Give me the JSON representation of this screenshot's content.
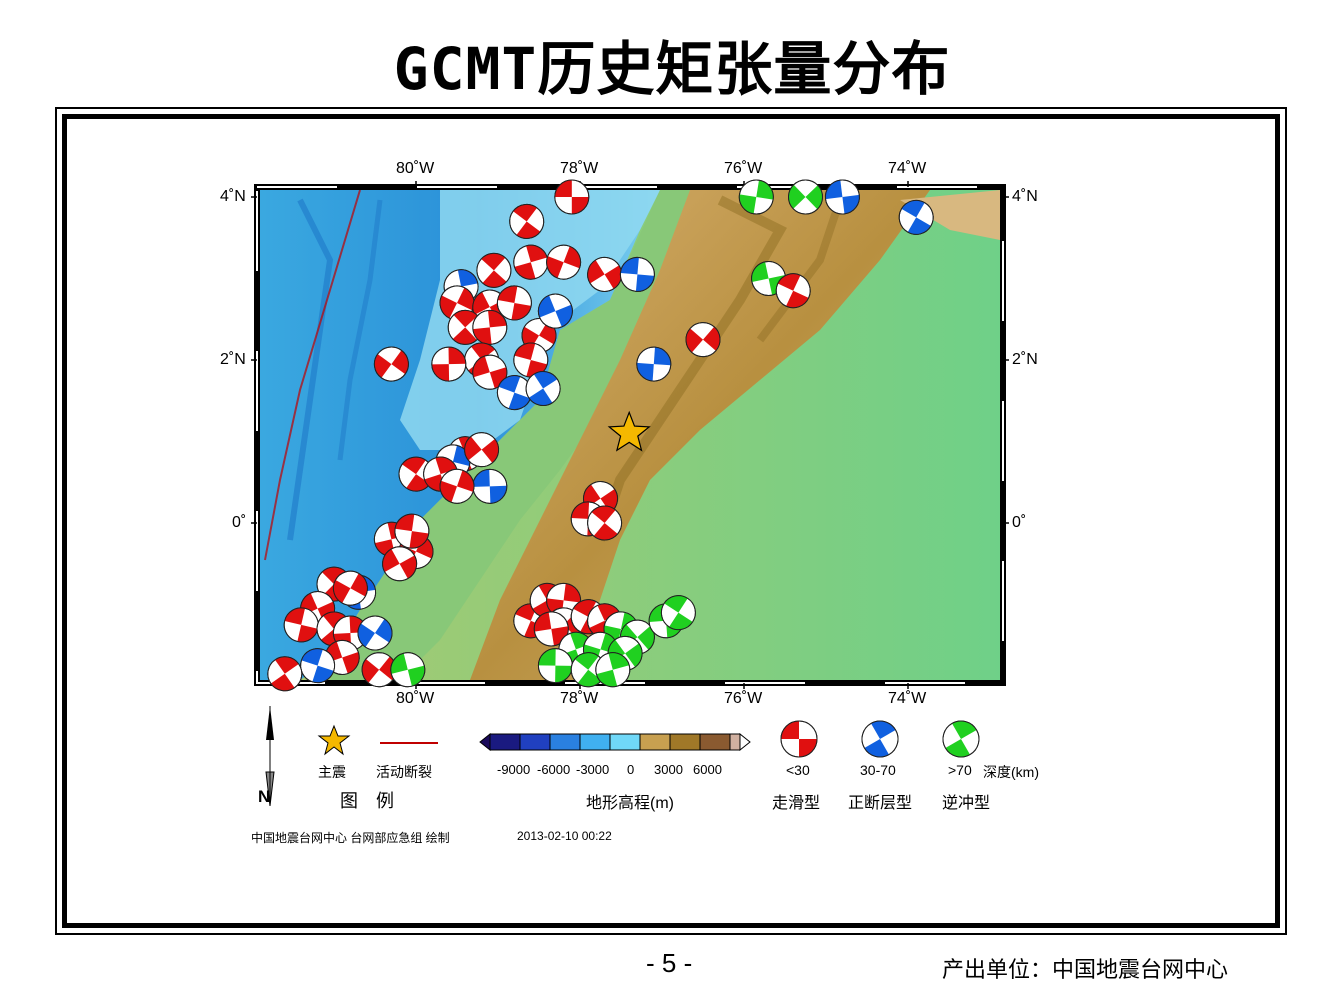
{
  "title": "GCMT历史矩张量分布",
  "map": {
    "lon_labels": [
      "80˚W",
      "78˚W",
      "76˚W",
      "74˚W"
    ],
    "lat_labels": [
      "4˚N",
      "2˚N",
      "0˚"
    ],
    "main_shock": {
      "lon": -77.4,
      "lat": 1.1
    },
    "events": [
      {
        "lon": -78.1,
        "lat": 4.0,
        "type": "strike_slip"
      },
      {
        "lon": -78.65,
        "lat": 3.7,
        "type": "strike_slip"
      },
      {
        "lon": -78.6,
        "lat": 3.2,
        "type": "strike_slip"
      },
      {
        "lon": -78.2,
        "lat": 3.2,
        "type": "strike_slip"
      },
      {
        "lon": -77.7,
        "lat": 3.05,
        "type": "strike_slip"
      },
      {
        "lon": -77.3,
        "lat": 3.05,
        "type": "normal"
      },
      {
        "lon": -79.05,
        "lat": 3.1,
        "type": "strike_slip"
      },
      {
        "lon": -79.45,
        "lat": 2.9,
        "type": "normal"
      },
      {
        "lon": -79.5,
        "lat": 2.7,
        "type": "strike_slip"
      },
      {
        "lon": -79.1,
        "lat": 2.65,
        "type": "strike_slip"
      },
      {
        "lon": -78.8,
        "lat": 2.7,
        "type": "strike_slip"
      },
      {
        "lon": -79.4,
        "lat": 2.4,
        "type": "strike_slip"
      },
      {
        "lon": -79.1,
        "lat": 2.4,
        "type": "strike_slip"
      },
      {
        "lon": -78.5,
        "lat": 2.3,
        "type": "strike_slip"
      },
      {
        "lon": -78.3,
        "lat": 2.6,
        "type": "normal"
      },
      {
        "lon": -78.6,
        "lat": 2.0,
        "type": "strike_slip"
      },
      {
        "lon": -79.2,
        "lat": 2.0,
        "type": "strike_slip"
      },
      {
        "lon": -79.6,
        "lat": 1.95,
        "type": "strike_slip"
      },
      {
        "lon": -80.3,
        "lat": 1.95,
        "type": "strike_slip"
      },
      {
        "lon": -79.1,
        "lat": 1.85,
        "type": "strike_slip"
      },
      {
        "lon": -78.8,
        "lat": 1.6,
        "type": "normal"
      },
      {
        "lon": -78.45,
        "lat": 1.65,
        "type": "normal"
      },
      {
        "lon": -77.1,
        "lat": 1.95,
        "type": "normal"
      },
      {
        "lon": -76.5,
        "lat": 2.25,
        "type": "strike_slip"
      },
      {
        "lon": -75.7,
        "lat": 3.0,
        "type": "thrust"
      },
      {
        "lon": -75.4,
        "lat": 2.85,
        "type": "strike_slip"
      },
      {
        "lon": -75.95,
        "lat": 4.1,
        "type": "normal"
      },
      {
        "lon": -75.85,
        "lat": 4.0,
        "type": "thrust"
      },
      {
        "lon": -75.25,
        "lat": 4.0,
        "type": "thrust"
      },
      {
        "lon": -74.8,
        "lat": 4.0,
        "type": "normal"
      },
      {
        "lon": -73.9,
        "lat": 3.75,
        "type": "normal"
      },
      {
        "lon": -79.4,
        "lat": 0.85,
        "type": "strike_slip"
      },
      {
        "lon": -79.55,
        "lat": 0.75,
        "type": "normal"
      },
      {
        "lon": -79.2,
        "lat": 0.9,
        "type": "strike_slip"
      },
      {
        "lon": -79.1,
        "lat": 0.45,
        "type": "normal"
      },
      {
        "lon": -80.0,
        "lat": 0.6,
        "type": "strike_slip"
      },
      {
        "lon": -79.7,
        "lat": 0.6,
        "type": "strike_slip"
      },
      {
        "lon": -79.5,
        "lat": 0.45,
        "type": "strike_slip"
      },
      {
        "lon": -77.75,
        "lat": 0.3,
        "type": "strike_slip"
      },
      {
        "lon": -77.9,
        "lat": 0.05,
        "type": "strike_slip"
      },
      {
        "lon": -77.7,
        "lat": 0.0,
        "type": "strike_slip"
      },
      {
        "lon": -80.3,
        "lat": -0.2,
        "type": "strike_slip"
      },
      {
        "lon": -80.0,
        "lat": -0.35,
        "type": "strike_slip"
      },
      {
        "lon": -80.2,
        "lat": -0.5,
        "type": "strike_slip"
      },
      {
        "lon": -80.05,
        "lat": -0.1,
        "type": "strike_slip"
      },
      {
        "lon": -81.0,
        "lat": -0.75,
        "type": "strike_slip"
      },
      {
        "lon": -80.7,
        "lat": -0.85,
        "type": "normal"
      },
      {
        "lon": -80.8,
        "lat": -0.8,
        "type": "strike_slip"
      },
      {
        "lon": -81.2,
        "lat": -1.05,
        "type": "strike_slip"
      },
      {
        "lon": -81.4,
        "lat": -1.25,
        "type": "strike_slip"
      },
      {
        "lon": -81.0,
        "lat": -1.3,
        "type": "strike_slip"
      },
      {
        "lon": -80.8,
        "lat": -1.35,
        "type": "strike_slip"
      },
      {
        "lon": -80.5,
        "lat": -1.35,
        "type": "normal"
      },
      {
        "lon": -80.9,
        "lat": -1.65,
        "type": "strike_slip"
      },
      {
        "lon": -81.2,
        "lat": -1.75,
        "type": "normal"
      },
      {
        "lon": -81.6,
        "lat": -1.85,
        "type": "strike_slip"
      },
      {
        "lon": -81.7,
        "lat": -1.95,
        "type": "strike_slip"
      },
      {
        "lon": -80.45,
        "lat": -1.8,
        "type": "strike_slip"
      },
      {
        "lon": -80.1,
        "lat": -1.8,
        "type": "thrust"
      },
      {
        "lon": -78.6,
        "lat": -1.2,
        "type": "strike_slip"
      },
      {
        "lon": -78.4,
        "lat": -0.95,
        "type": "strike_slip"
      },
      {
        "lon": -78.2,
        "lat": -0.95,
        "type": "strike_slip"
      },
      {
        "lon": -78.2,
        "lat": -1.25,
        "type": "strike_slip"
      },
      {
        "lon": -78.35,
        "lat": -1.3,
        "type": "strike_slip"
      },
      {
        "lon": -77.9,
        "lat": -1.15,
        "type": "strike_slip"
      },
      {
        "lon": -77.7,
        "lat": -1.2,
        "type": "strike_slip"
      },
      {
        "lon": -77.5,
        "lat": -1.3,
        "type": "thrust"
      },
      {
        "lon": -77.3,
        "lat": -1.4,
        "type": "thrust"
      },
      {
        "lon": -76.95,
        "lat": -1.2,
        "type": "thrust"
      },
      {
        "lon": -76.8,
        "lat": -1.1,
        "type": "thrust"
      },
      {
        "lon": -78.05,
        "lat": -1.55,
        "type": "thrust"
      },
      {
        "lon": -77.75,
        "lat": -1.55,
        "type": "thrust"
      },
      {
        "lon": -77.45,
        "lat": -1.6,
        "type": "thrust"
      },
      {
        "lon": -78.3,
        "lat": -1.75,
        "type": "thrust"
      },
      {
        "lon": -77.9,
        "lat": -1.8,
        "type": "thrust"
      },
      {
        "lon": -77.6,
        "lat": -1.8,
        "type": "thrust"
      }
    ],
    "event_colors": {
      "strike_slip": "#e01010",
      "normal": "#1060e0",
      "thrust": "#20d020"
    }
  },
  "legend": {
    "north": "N",
    "main_shock_label": "主震",
    "fault_label": "活动断裂",
    "legend_title": "图　例",
    "colorbar_ticks": [
      "-9000",
      "-6000",
      "-3000",
      "0",
      "3000",
      "6000"
    ],
    "colorbar_title": "地形高程(m)",
    "depth_labels": [
      "<30",
      "30-70",
      ">70"
    ],
    "depth_unit": "深度(km)",
    "mech_labels": [
      "走滑型",
      "正断层型",
      "逆冲型"
    ],
    "credit": "中国地震台网中心 台网部应急组 绘制",
    "timestamp": "2013-02-10 00:22"
  },
  "footer": {
    "page_number": "- 5 -",
    "producer": "产出单位：中国地震台网中心"
  }
}
